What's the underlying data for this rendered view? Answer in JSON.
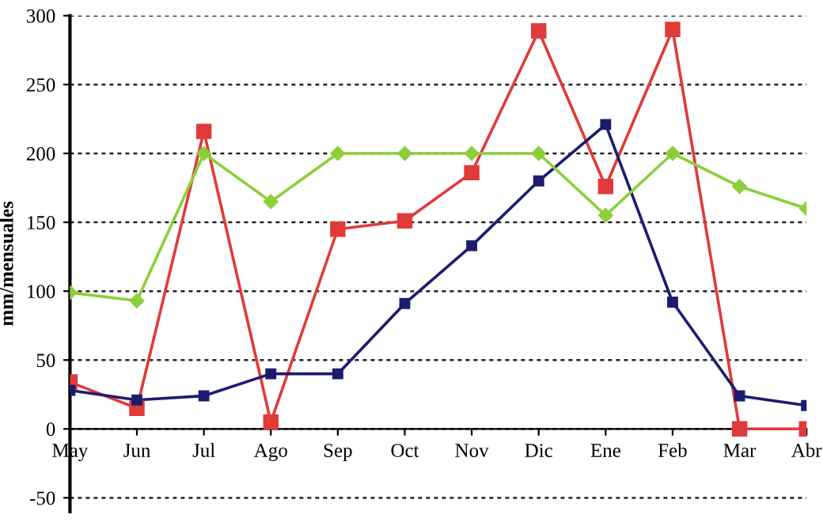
{
  "chart_data": {
    "type": "line",
    "ylabel": "mm/mensuales",
    "categories": [
      "May",
      "Jun",
      "Jul",
      "Ago",
      "Sep",
      "Oct",
      "Nov",
      "Dic",
      "Ene",
      "Feb",
      "Mar",
      "Abr"
    ],
    "series": [
      {
        "color": "#e03a3a",
        "marker": "square",
        "values": [
          34,
          15,
          216,
          5,
          145,
          151,
          186,
          289,
          176,
          290,
          0,
          0
        ]
      },
      {
        "color": "#1c1c6e",
        "marker": "square",
        "values": [
          28,
          21,
          24,
          40,
          40,
          91,
          133,
          180,
          221,
          92,
          24,
          17
        ]
      },
      {
        "color": "#8ccf3a",
        "marker": "diamond",
        "values": [
          99,
          93,
          200,
          165,
          200,
          200,
          200,
          200,
          155,
          200,
          176,
          160
        ]
      }
    ],
    "ylim": [
      -60,
      300
    ],
    "yticks": [
      -50,
      0,
      50,
      100,
      150,
      200,
      250,
      300
    ],
    "grid": "y",
    "line_style": "solid"
  }
}
